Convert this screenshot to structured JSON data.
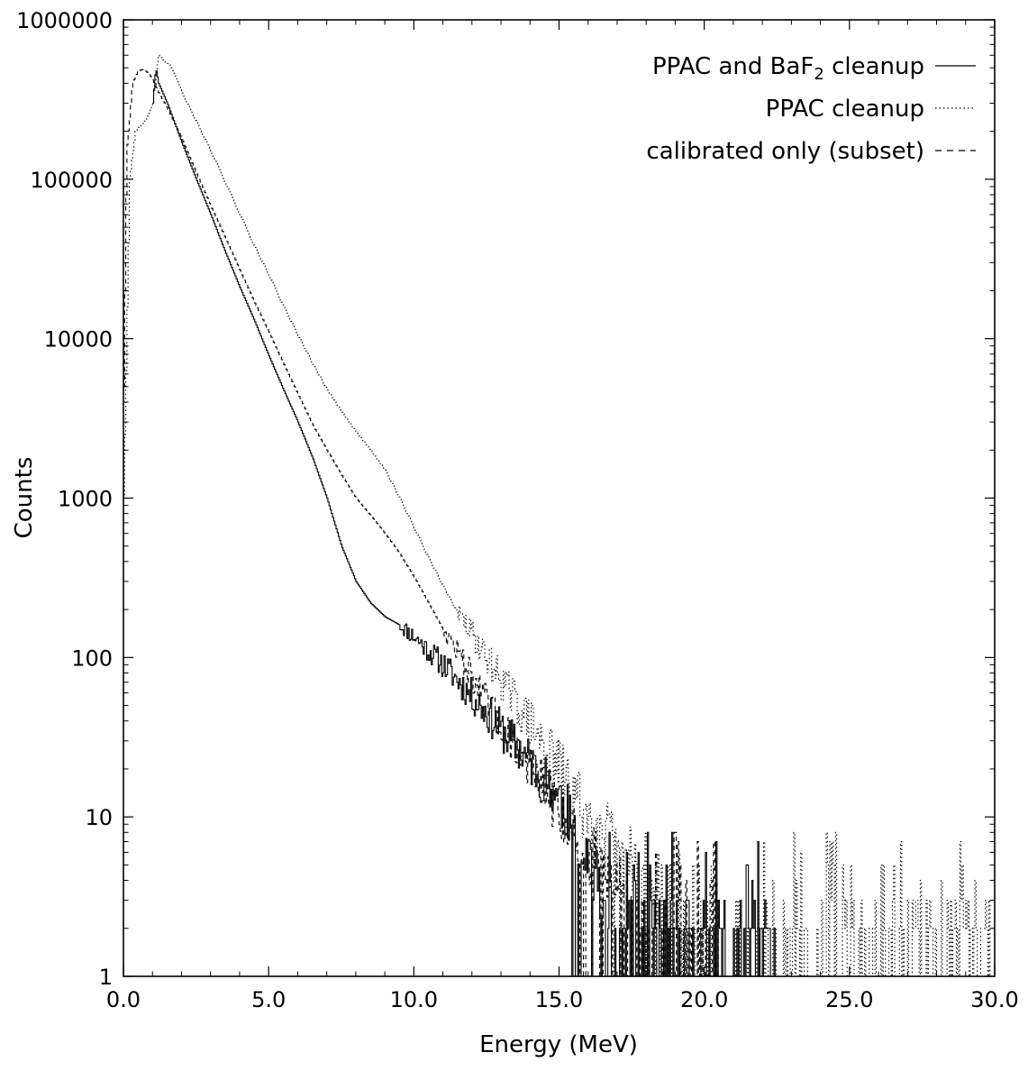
{
  "chart_data": {
    "type": "line",
    "xlabel": "Energy (MeV)",
    "ylabel": "Counts",
    "xlim": [
      0,
      30
    ],
    "ylim": [
      1,
      1000000
    ],
    "yscale": "log",
    "grid": false,
    "legend_position": "top-right",
    "x_ticks": [
      {
        "value": 0,
        "label": "0.0"
      },
      {
        "value": 5,
        "label": "5.0"
      },
      {
        "value": 10,
        "label": "10.0"
      },
      {
        "value": 15,
        "label": "15.0"
      },
      {
        "value": 20,
        "label": "20.0"
      },
      {
        "value": 25,
        "label": "25.0"
      },
      {
        "value": 30,
        "label": "30.0"
      }
    ],
    "y_ticks": [
      {
        "value": 1,
        "label": "1"
      },
      {
        "value": 10,
        "label": "10"
      },
      {
        "value": 100,
        "label": "100"
      },
      {
        "value": 1000,
        "label": "1000"
      },
      {
        "value": 10000,
        "label": "10000"
      },
      {
        "value": 100000,
        "label": "100000"
      },
      {
        "value": 1000000,
        "label": "1000000"
      }
    ],
    "series": [
      {
        "name": "PPAC and BaF2 cleanup",
        "legend_main": "PPAC and BaF",
        "legend_sub": "2",
        "legend_tail": " cleanup",
        "style": "solid",
        "color": "#000000",
        "noise_start": 9.5,
        "noise_amp": 0.05,
        "rare_start": 16.5,
        "max_x": 22.5,
        "x": [
          1.0,
          1.1,
          1.2,
          1.5,
          2.0,
          2.5,
          3.0,
          3.5,
          4.0,
          4.5,
          5.0,
          5.5,
          6.0,
          6.5,
          7.0,
          7.5,
          8.0,
          8.5,
          9.0,
          9.5,
          10.0,
          10.5,
          11.0,
          11.5,
          12.0,
          12.5,
          13.0,
          13.5,
          14.0,
          14.5,
          15.0,
          15.5,
          16.0,
          16.5
        ],
        "y": [
          300000,
          500000,
          400000,
          300000,
          170000,
          100000,
          60000,
          35000,
          21000,
          13000,
          7800,
          4800,
          3000,
          1800,
          1000,
          500,
          300,
          220,
          180,
          160,
          135,
          110,
          90,
          72,
          57,
          45,
          35,
          28,
          22,
          17,
          13,
          9,
          6,
          3
        ]
      },
      {
        "name": "PPAC cleanup",
        "style": "dotted",
        "color": "#000000",
        "noise_start": 11.5,
        "noise_amp": 0.07,
        "rare_start": 18.5,
        "max_x": 30,
        "x": [
          0.0,
          0.2,
          0.4,
          0.6,
          0.8,
          1.0,
          1.2,
          1.4,
          1.6,
          2.0,
          2.5,
          3.0,
          3.5,
          4.0,
          4.5,
          5.0,
          5.5,
          6.0,
          6.5,
          7.0,
          7.5,
          8.0,
          8.5,
          9.0,
          9.5,
          10.0,
          10.5,
          11.0,
          11.5,
          12.0,
          12.5,
          13.0,
          13.5,
          14.0,
          14.5,
          15.0,
          15.5,
          16.0,
          16.5,
          17.0,
          17.5,
          18.0,
          18.5
        ],
        "y": [
          1000,
          100000,
          200000,
          220000,
          240000,
          300000,
          600000,
          550000,
          520000,
          350000,
          230000,
          150000,
          95000,
          60000,
          38000,
          25000,
          16000,
          10500,
          7000,
          4800,
          3500,
          2600,
          2000,
          1500,
          1000,
          650,
          420,
          280,
          190,
          140,
          100,
          72,
          52,
          38,
          27,
          20,
          14,
          10,
          8,
          6,
          5,
          4,
          3
        ]
      },
      {
        "name": "calibrated only (subset)",
        "style": "dashed",
        "color": "#000000",
        "noise_start": 11.0,
        "noise_amp": 0.06,
        "rare_start": 17.5,
        "max_x": 20.5,
        "x": [
          0.0,
          0.1,
          0.3,
          0.5,
          0.7,
          0.9,
          1.0,
          1.2,
          1.5,
          2.0,
          2.5,
          3.0,
          3.5,
          4.0,
          4.5,
          5.0,
          5.5,
          6.0,
          6.5,
          7.0,
          7.5,
          8.0,
          8.5,
          9.0,
          9.5,
          10.0,
          10.5,
          11.0,
          11.5,
          12.0,
          12.5,
          13.0,
          13.5,
          14.0,
          14.5,
          15.0,
          15.5,
          16.0,
          16.5,
          17.0,
          17.5
        ],
        "y": [
          5000,
          150000,
          400000,
          480000,
          490000,
          450000,
          420000,
          350000,
          280000,
          180000,
          110000,
          68000,
          43000,
          27000,
          17000,
          11000,
          7000,
          4500,
          2900,
          2000,
          1400,
          1000,
          780,
          600,
          450,
          320,
          220,
          150,
          110,
          75,
          52,
          37,
          28,
          20,
          15,
          11,
          8,
          6,
          5,
          4,
          3
        ]
      }
    ]
  }
}
